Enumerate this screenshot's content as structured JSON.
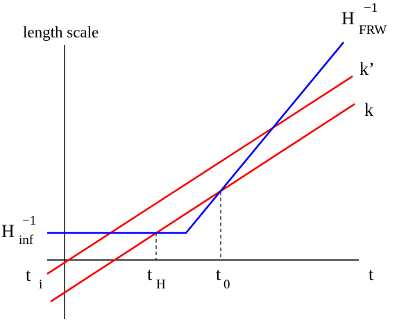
{
  "diagram": {
    "y_axis_title": "length scale",
    "x_axis_label": "t",
    "colors": {
      "axis": "#000000",
      "hubble": "#0000ff",
      "mode": "#ff0000",
      "guide": "#000000"
    },
    "labels": {
      "h_frw": {
        "base": "H",
        "sup": "−1",
        "sub": "FRW"
      },
      "h_inf": {
        "base": "H",
        "sup": "−1",
        "sub": "inf"
      },
      "k_prime": "k’",
      "k": "k",
      "t_i": {
        "base": "t",
        "sub": "i"
      },
      "t_h": {
        "base": "t",
        "sub": "H"
      },
      "t_0": {
        "base": "t",
        "sub": "0"
      }
    }
  }
}
